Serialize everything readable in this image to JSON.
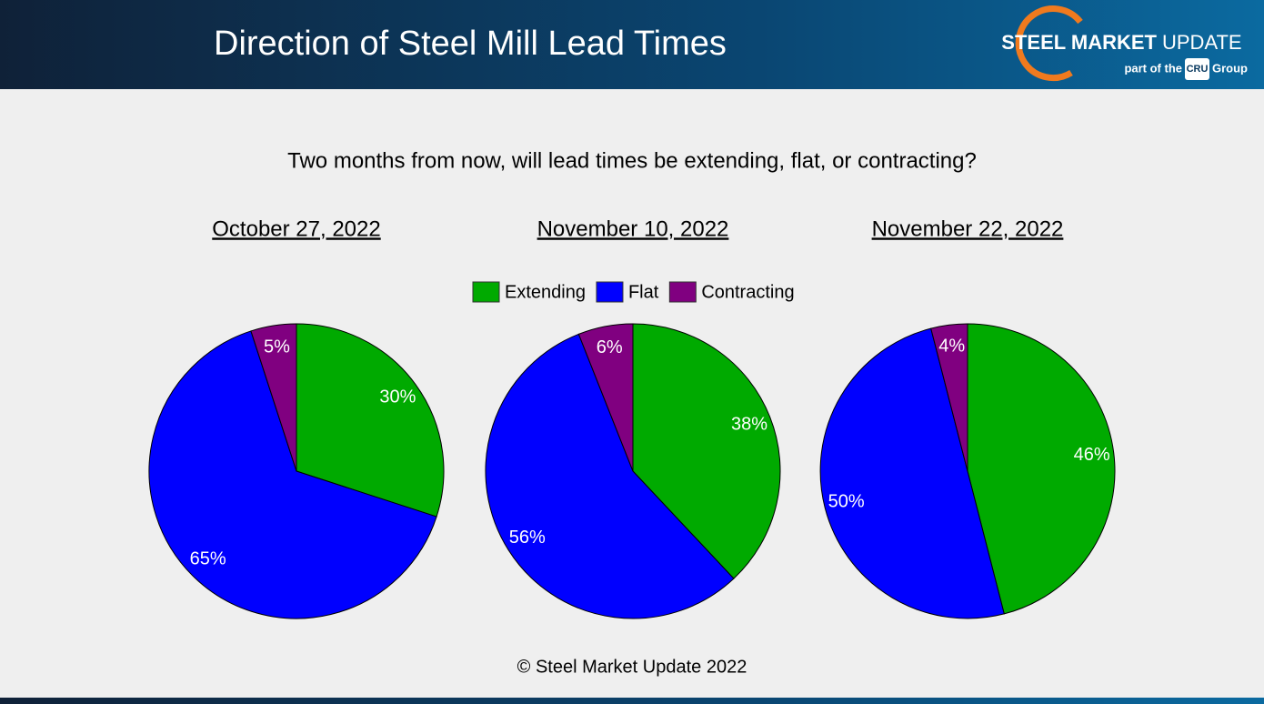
{
  "header": {
    "title": "Direction of Steel Mill Lead Times",
    "logo": {
      "brand_bold": "STEEL MARKET",
      "brand_light": "UPDATE",
      "tagline_prefix": "part of the",
      "tagline_box": "CRU",
      "tagline_suffix": "Group"
    }
  },
  "question": "Two months from now, will lead times be extending, flat, or contracting?",
  "footer": {
    "copyright": "© Steel Market Update 2022"
  },
  "chart_data": [
    {
      "type": "pie",
      "title": "October 27, 2022",
      "categories": [
        "Extending",
        "Flat",
        "Contracting"
      ],
      "values": [
        30,
        65,
        5
      ],
      "value_labels": [
        "30%",
        "65%",
        "5%"
      ],
      "colors": [
        "#00aa00",
        "#0000ff",
        "#800080"
      ]
    },
    {
      "type": "pie",
      "title": "November 10, 2022",
      "categories": [
        "Extending",
        "Flat",
        "Contracting"
      ],
      "values": [
        38,
        56,
        6
      ],
      "value_labels": [
        "38%",
        "56%",
        "6%"
      ],
      "colors": [
        "#00aa00",
        "#0000ff",
        "#800080"
      ]
    },
    {
      "type": "pie",
      "title": "November 22, 2022",
      "categories": [
        "Extending",
        "Flat",
        "Contracting"
      ],
      "values": [
        46,
        50,
        4
      ],
      "value_labels": [
        "46%",
        "50%",
        "4%"
      ],
      "colors": [
        "#00aa00",
        "#0000ff",
        "#800080"
      ]
    }
  ]
}
